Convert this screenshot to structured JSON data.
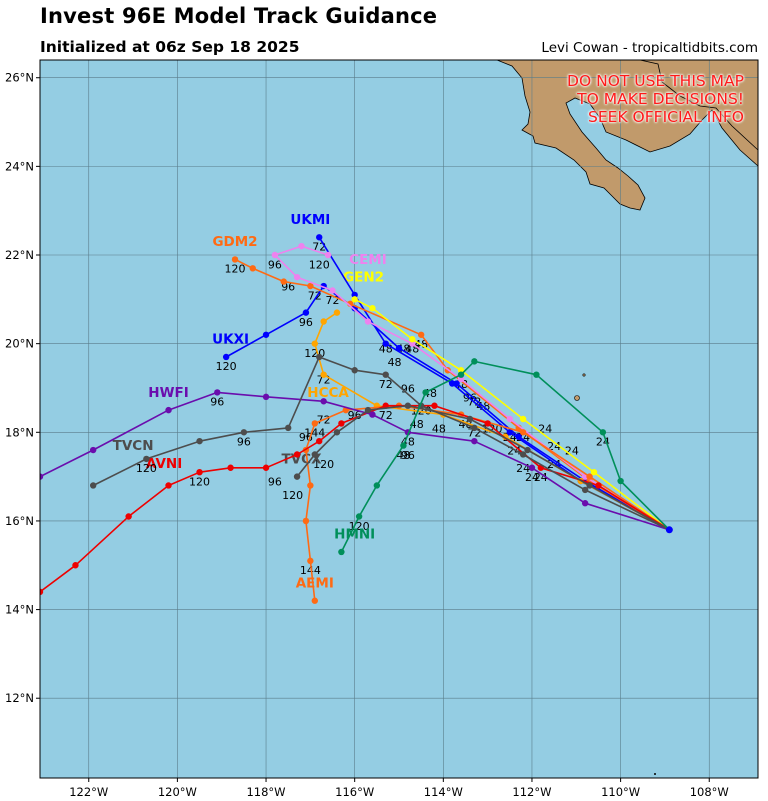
{
  "header": {
    "title": "Invest 96E Model Track Guidance",
    "subtitle": "Initialized at 06z Sep 18 2025",
    "credit": "Levi Cowan - tropicaltidbits.com"
  },
  "warning": [
    "DO NOT USE THIS MAP",
    "TO MAKE DECISIONS!",
    "SEEK OFFICIAL INFO"
  ],
  "map": {
    "lon_range": [
      -123.1,
      -106.9
    ],
    "lat_range": [
      10.2,
      26.4
    ],
    "lon_ticks": [
      {
        "v": -122,
        "label": "122°W"
      },
      {
        "v": -120,
        "label": "120°W"
      },
      {
        "v": -118,
        "label": "118°W"
      },
      {
        "v": -116,
        "label": "116°W"
      },
      {
        "v": -114,
        "label": "114°W"
      },
      {
        "v": -112,
        "label": "112°W"
      },
      {
        "v": -110,
        "label": "110°W"
      },
      {
        "v": -108,
        "label": "108°W"
      }
    ],
    "lat_ticks": [
      {
        "v": 12,
        "label": "12°N"
      },
      {
        "v": 14,
        "label": "14°N"
      },
      {
        "v": 16,
        "label": "16°N"
      },
      {
        "v": 18,
        "label": "18°N"
      },
      {
        "v": 20,
        "label": "20°N"
      },
      {
        "v": 22,
        "label": "22°N"
      },
      {
        "v": 24,
        "label": "24°N"
      },
      {
        "v": 26,
        "label": "26°N"
      }
    ],
    "colors": {
      "ocean": "#94cde3",
      "land": "#c19a6b",
      "grid": "#5a7d8a",
      "warning": "#ff1a1a"
    },
    "origin": {
      "lon": -108.9,
      "lat": 15.8
    }
  },
  "models": [
    {
      "name": "UKMI",
      "color": "#0000ff",
      "name_at": [
        -117.0,
        22.7
      ],
      "points": [
        [
          -108.9,
          15.8
        ],
        [
          -110.9,
          16.9
        ],
        [
          -112.5,
          18.0
        ],
        [
          -113.8,
          19.1
        ],
        [
          -115.3,
          20.0
        ],
        [
          -116.0,
          21.1
        ],
        [
          -116.8,
          22.4
        ]
      ],
      "labels": [
        {
          "t": "72",
          "at": [
            -116.8,
            22.1
          ]
        },
        {
          "t": "120",
          "at": [
            -116.8,
            21.7
          ]
        },
        {
          "t": "48",
          "at": [
            -115.3,
            19.8
          ]
        },
        {
          "t": "24",
          "at": [
            -112.5,
            17.8
          ]
        }
      ]
    },
    {
      "name": "UKXI",
      "color": "#0000ff",
      "name_at": [
        -118.8,
        20.0
      ],
      "points": [
        [
          -108.9,
          15.8
        ],
        [
          -110.8,
          16.9
        ],
        [
          -112.3,
          17.9
        ],
        [
          -113.7,
          19.1
        ],
        [
          -115.0,
          19.9
        ],
        [
          -116.0,
          20.8
        ],
        [
          -116.7,
          21.3
        ],
        [
          -117.1,
          20.7
        ],
        [
          -118.0,
          20.2
        ],
        [
          -118.9,
          19.7
        ]
      ],
      "labels": [
        {
          "t": "120",
          "at": [
            -118.9,
            19.4
          ]
        },
        {
          "t": "96",
          "at": [
            -117.1,
            20.4
          ]
        },
        {
          "t": "72",
          "at": [
            -116.5,
            20.9
          ]
        }
      ]
    },
    {
      "name": "GDM2",
      "color": "#ff6a13",
      "name_at": [
        -118.7,
        22.2
      ],
      "points": [
        [
          -108.9,
          15.8
        ],
        [
          -110.7,
          16.9
        ],
        [
          -112.3,
          18.1
        ],
        [
          -113.9,
          19.4
        ],
        [
          -114.5,
          20.2
        ],
        [
          -116.1,
          20.9
        ],
        [
          -117.0,
          21.3
        ],
        [
          -117.6,
          21.4
        ],
        [
          -118.3,
          21.7
        ],
        [
          -118.7,
          21.9
        ]
      ],
      "labels": [
        {
          "t": "120",
          "at": [
            -118.7,
            21.6
          ]
        },
        {
          "t": "96",
          "at": [
            -117.5,
            21.2
          ]
        },
        {
          "t": "72",
          "at": [
            -116.9,
            21.0
          ]
        },
        {
          "t": "48",
          "at": [
            -114.5,
            19.9
          ]
        }
      ]
    },
    {
      "name": "CEMI",
      "color": "#ee82ee",
      "name_at": [
        -115.7,
        21.8
      ],
      "points": [
        [
          -108.9,
          15.8
        ],
        [
          -110.8,
          17.0
        ],
        [
          -112.5,
          18.3
        ],
        [
          -113.6,
          19.2
        ],
        [
          -114.7,
          20.0
        ],
        [
          -115.7,
          20.5
        ],
        [
          -116.5,
          21.2
        ],
        [
          -117.3,
          21.5
        ],
        [
          -117.8,
          22.0
        ],
        [
          -117.2,
          22.2
        ],
        [
          -116.6,
          22.0
        ]
      ],
      "labels": [
        {
          "t": "96",
          "at": [
            -117.8,
            21.7
          ]
        }
      ]
    },
    {
      "name": "GEN2",
      "color": "#ffff00",
      "name_at": [
        -115.8,
        21.4
      ],
      "points": [
        [
          -108.9,
          15.8
        ],
        [
          -110.6,
          17.1
        ],
        [
          -112.2,
          18.3
        ],
        [
          -113.6,
          19.4
        ],
        [
          -114.7,
          20.1
        ],
        [
          -115.6,
          20.8
        ],
        [
          -116.0,
          21.0
        ]
      ],
      "labels": [
        {
          "t": "48",
          "at": [
            -114.7,
            19.8
          ]
        }
      ]
    },
    {
      "name": "HCCA",
      "color": "#ffa500",
      "name_at": [
        -116.6,
        18.8
      ],
      "points": [
        [
          -108.9,
          15.8
        ],
        [
          -110.9,
          16.9
        ],
        [
          -112.6,
          17.9
        ],
        [
          -114.0,
          18.4
        ],
        [
          -115.5,
          18.6
        ],
        [
          -116.7,
          19.3
        ],
        [
          -116.9,
          20.0
        ],
        [
          -116.7,
          20.5
        ],
        [
          -116.4,
          20.7
        ]
      ],
      "labels": [
        {
          "t": "120",
          "at": [
            -116.9,
            19.7
          ]
        },
        {
          "t": "72",
          "at": [
            -116.7,
            19.1
          ]
        },
        {
          "t": "72",
          "at": [
            -116.7,
            18.2
          ]
        },
        {
          "t": "144",
          "at": [
            -116.9,
            17.9
          ]
        }
      ]
    },
    {
      "name": "AEMI",
      "color": "#ff6a13",
      "name_at": [
        -116.9,
        14.5
      ],
      "points": [
        [
          -108.9,
          15.8
        ],
        [
          -110.7,
          17.0
        ],
        [
          -112.2,
          18.0
        ],
        [
          -113.6,
          18.4
        ],
        [
          -115.0,
          18.6
        ],
        [
          -116.2,
          18.5
        ],
        [
          -116.9,
          18.2
        ],
        [
          -117.1,
          17.6
        ],
        [
          -117.0,
          16.8
        ],
        [
          -117.1,
          16.0
        ],
        [
          -117.0,
          15.1
        ],
        [
          -116.9,
          14.2
        ]
      ],
      "labels": [
        {
          "t": "120",
          "at": [
            -117.4,
            16.5
          ]
        },
        {
          "t": "144",
          "at": [
            -117.0,
            14.8
          ]
        }
      ]
    },
    {
      "name": "AVNI",
      "color": "#ee0000",
      "name_at": [
        -120.3,
        17.2
      ],
      "points": [
        [
          -108.9,
          15.8
        ],
        [
          -110.5,
          16.8
        ],
        [
          -111.8,
          17.2
        ],
        [
          -113.0,
          18.2
        ],
        [
          -114.2,
          18.6
        ],
        [
          -115.3,
          18.6
        ],
        [
          -116.3,
          18.2
        ],
        [
          -116.8,
          17.8
        ],
        [
          -117.3,
          17.5
        ],
        [
          -118.0,
          17.2
        ],
        [
          -118.8,
          17.2
        ],
        [
          -119.5,
          17.1
        ],
        [
          -120.2,
          16.8
        ],
        [
          -121.1,
          16.1
        ],
        [
          -122.3,
          15.0
        ],
        [
          -123.1,
          14.4
        ]
      ],
      "labels": [
        {
          "t": "24",
          "at": [
            -111.8,
            16.9
          ]
        },
        {
          "t": "120",
          "at": [
            -119.5,
            16.8
          ]
        }
      ]
    },
    {
      "name": "HWFI",
      "color": "#6a0dad",
      "name_at": [
        -120.2,
        18.8
      ],
      "points": [
        [
          -108.9,
          15.8
        ],
        [
          -110.8,
          16.4
        ],
        [
          -112.0,
          17.2
        ],
        [
          -113.3,
          17.8
        ],
        [
          -114.8,
          18.0
        ],
        [
          -115.6,
          18.4
        ],
        [
          -116.7,
          18.7
        ],
        [
          -118.0,
          18.8
        ],
        [
          -119.1,
          18.9
        ],
        [
          -120.2,
          18.5
        ],
        [
          -121.9,
          17.6
        ],
        [
          -123.1,
          17.0
        ]
      ],
      "labels": [
        {
          "t": "96",
          "at": [
            -119.1,
            18.6
          ]
        },
        {
          "t": "24",
          "at": [
            -112.0,
            16.9
          ]
        },
        {
          "t": "48",
          "at": [
            -114.8,
            17.7
          ]
        },
        {
          "t": "96",
          "at": [
            -114.8,
            17.4
          ]
        }
      ]
    },
    {
      "name": "TVCN",
      "color": "#4d4d4d",
      "name_at": [
        -121.0,
        17.6
      ],
      "points": [
        [
          -108.9,
          15.8
        ],
        [
          -110.8,
          16.7
        ],
        [
          -112.2,
          17.5
        ],
        [
          -113.3,
          18.1
        ],
        [
          -114.5,
          18.6
        ],
        [
          -115.3,
          19.3
        ],
        [
          -116.0,
          19.4
        ],
        [
          -116.8,
          19.7
        ],
        [
          -117.5,
          18.1
        ],
        [
          -118.5,
          18.0
        ],
        [
          -119.5,
          17.8
        ],
        [
          -120.7,
          17.4
        ],
        [
          -121.9,
          16.8
        ]
      ],
      "labels": [
        {
          "t": "96",
          "at": [
            -118.5,
            17.7
          ]
        },
        {
          "t": "120",
          "at": [
            -120.7,
            17.1
          ]
        },
        {
          "t": "72",
          "at": [
            -115.3,
            19.0
          ]
        }
      ]
    },
    {
      "name": "TVCX",
      "color": "#4d4d4d",
      "name_at": [
        -117.2,
        17.3
      ],
      "points": [
        [
          -108.9,
          15.8
        ],
        [
          -110.7,
          16.8
        ],
        [
          -112.1,
          17.6
        ],
        [
          -113.4,
          18.3
        ],
        [
          -114.8,
          18.6
        ],
        [
          -115.7,
          18.5
        ],
        [
          -116.4,
          18.0
        ],
        [
          -116.9,
          17.5
        ],
        [
          -117.3,
          17.0
        ]
      ],
      "labels": [
        {
          "t": "96",
          "at": [
            -117.8,
            16.8
          ]
        },
        {
          "t": "120",
          "at": [
            -116.7,
            17.2
          ]
        }
      ]
    },
    {
      "name": "HMNI",
      "color": "#008f5a",
      "name_at": [
        -116.0,
        15.6
      ],
      "points": [
        [
          -108.9,
          15.8
        ],
        [
          -110.0,
          16.9
        ],
        [
          -110.4,
          18.0
        ],
        [
          -111.9,
          19.3
        ],
        [
          -113.3,
          19.6
        ],
        [
          -113.6,
          19.3
        ],
        [
          -114.4,
          18.9
        ],
        [
          -114.9,
          17.7
        ],
        [
          -115.5,
          16.8
        ],
        [
          -115.9,
          16.1
        ],
        [
          -116.3,
          15.3
        ]
      ],
      "labels": [
        {
          "t": "24",
          "at": [
            -110.4,
            17.7
          ]
        },
        {
          "t": "48",
          "at": [
            -113.6,
            19.0
          ]
        },
        {
          "t": "96",
          "at": [
            -113.4,
            18.7
          ]
        },
        {
          "t": "120",
          "at": [
            -115.9,
            15.8
          ]
        },
        {
          "t": "48",
          "at": [
            -114.9,
            17.4
          ]
        }
      ]
    }
  ],
  "cluster_labels": [
    {
      "t": "48",
      "at": [
        -114.9,
        19.8
      ]
    },
    {
      "t": "48",
      "at": [
        -115.1,
        19.5
      ]
    },
    {
      "t": "96",
      "at": [
        -114.8,
        18.9
      ]
    },
    {
      "t": "48",
      "at": [
        -114.3,
        18.8
      ]
    },
    {
      "t": "48",
      "at": [
        -114.6,
        18.1
      ]
    },
    {
      "t": "48",
      "at": [
        -114.1,
        18.0
      ]
    },
    {
      "t": "48",
      "at": [
        -113.5,
        18.1
      ]
    },
    {
      "t": "120",
      "at": [
        -114.5,
        18.4
      ]
    },
    {
      "t": "72",
      "at": [
        -113.3,
        18.6
      ]
    },
    {
      "t": "72",
      "at": [
        -113.3,
        17.9
      ]
    },
    {
      "t": "120",
      "at": [
        -112.9,
        18.0
      ]
    },
    {
      "t": "24",
      "at": [
        -112.4,
        17.5
      ]
    },
    {
      "t": "24",
      "at": [
        -112.2,
        17.8
      ]
    },
    {
      "t": "24",
      "at": [
        -111.7,
        18.0
      ]
    },
    {
      "t": "24",
      "at": [
        -111.5,
        17.6
      ]
    },
    {
      "t": "24",
      "at": [
        -111.1,
        17.5
      ]
    },
    {
      "t": "24",
      "at": [
        -111.5,
        17.2
      ]
    },
    {
      "t": "24",
      "at": [
        -112.2,
        17.1
      ]
    },
    {
      "t": "72",
      "at": [
        -115.3,
        18.3
      ]
    },
    {
      "t": "96",
      "at": [
        -116.0,
        18.3
      ]
    },
    {
      "t": "96",
      "at": [
        -117.1,
        17.8
      ]
    },
    {
      "t": "48",
      "at": [
        -113.1,
        18.5
      ]
    }
  ]
}
